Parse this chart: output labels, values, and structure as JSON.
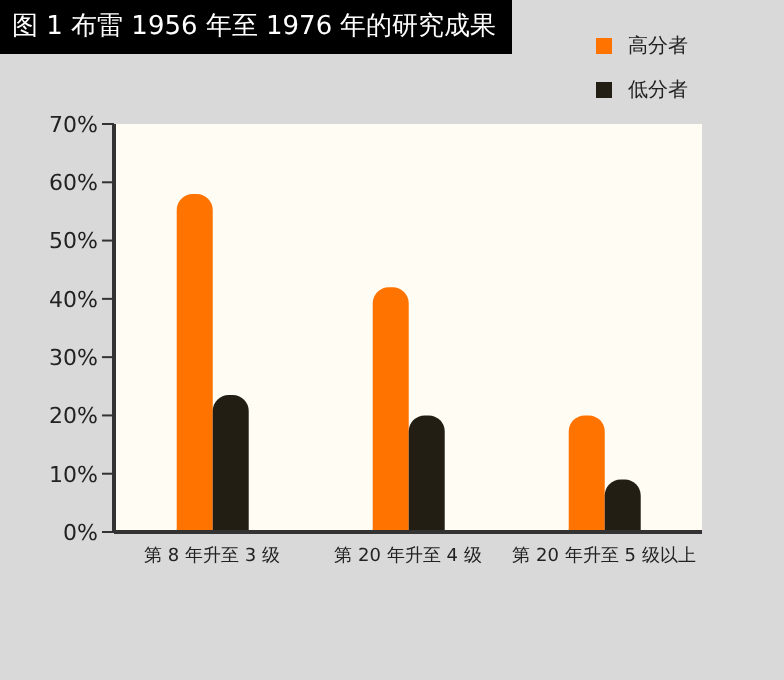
{
  "chart_data": {
    "type": "bar",
    "title": "图 1  布雷 1956 年至 1976 年的研究成果",
    "categories": [
      "第 8 年升至 3 级",
      "第 20 年升至 4 级",
      "第 20 年升至 5 级以上"
    ],
    "series": [
      {
        "name": "高分者",
        "color": "#ff7300",
        "values": [
          58,
          42,
          20
        ]
      },
      {
        "name": "低分者",
        "color": "#231e14",
        "values": [
          23.5,
          20,
          9
        ]
      }
    ],
    "ylim": [
      0,
      70
    ],
    "yticks": [
      {
        "value": 0,
        "label": "0%"
      },
      {
        "value": 10,
        "label": "10%"
      },
      {
        "value": 20,
        "label": "20%"
      },
      {
        "value": 30,
        "label": "30%"
      },
      {
        "value": 40,
        "label": "40%"
      },
      {
        "value": 50,
        "label": "50%"
      },
      {
        "value": 60,
        "label": "60%"
      },
      {
        "value": 70,
        "label": "70%"
      }
    ],
    "grid": false,
    "legend": "top right"
  }
}
